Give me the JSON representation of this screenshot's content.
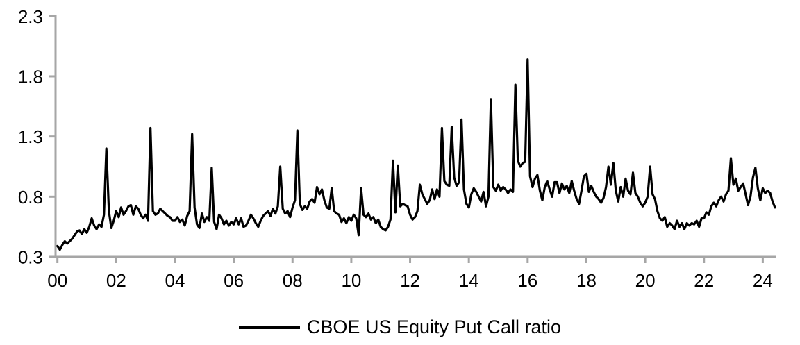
{
  "chart_data": {
    "type": "line",
    "title": "",
    "legend": {
      "label": "CBOE US Equity Put Call ratio",
      "position": "bottom-center"
    },
    "grid": false,
    "x_axis": {
      "tick_labels": [
        "00",
        "02",
        "04",
        "06",
        "08",
        "10",
        "12",
        "14",
        "16",
        "18",
        "20",
        "22",
        "24"
      ],
      "tick_years": [
        2000,
        2002,
        2004,
        2006,
        2008,
        2010,
        2012,
        2014,
        2016,
        2018,
        2020,
        2022,
        2024
      ],
      "range_years": [
        2000,
        2024.6
      ]
    },
    "y_axis": {
      "ticks": [
        0.3,
        0.8,
        1.3,
        1.8,
        2.3
      ],
      "range": [
        0.3,
        2.3
      ]
    },
    "series": [
      {
        "name": "CBOE US Equity Put Call ratio",
        "color": "#000000",
        "x_start_year": 2000,
        "x_step_months": 1,
        "values": [
          0.39,
          0.36,
          0.4,
          0.43,
          0.41,
          0.43,
          0.45,
          0.48,
          0.51,
          0.52,
          0.49,
          0.53,
          0.5,
          0.55,
          0.62,
          0.56,
          0.53,
          0.57,
          0.55,
          0.65,
          1.2,
          0.68,
          0.54,
          0.6,
          0.68,
          0.63,
          0.71,
          0.65,
          0.68,
          0.72,
          0.73,
          0.65,
          0.72,
          0.7,
          0.65,
          0.62,
          0.65,
          0.6,
          1.37,
          0.68,
          0.65,
          0.66,
          0.7,
          0.68,
          0.66,
          0.64,
          0.63,
          0.6,
          0.6,
          0.63,
          0.59,
          0.61,
          0.56,
          0.64,
          0.68,
          1.32,
          0.71,
          0.57,
          0.54,
          0.66,
          0.59,
          0.63,
          0.6,
          1.04,
          0.59,
          0.53,
          0.65,
          0.62,
          0.57,
          0.6,
          0.56,
          0.59,
          0.57,
          0.62,
          0.57,
          0.62,
          0.55,
          0.56,
          0.6,
          0.65,
          0.62,
          0.58,
          0.55,
          0.6,
          0.64,
          0.66,
          0.68,
          0.64,
          0.7,
          0.66,
          0.72,
          1.05,
          0.7,
          0.66,
          0.68,
          0.63,
          0.71,
          0.77,
          1.35,
          0.74,
          0.69,
          0.72,
          0.7,
          0.76,
          0.78,
          0.75,
          0.88,
          0.82,
          0.86,
          0.77,
          0.71,
          0.7,
          0.87,
          0.68,
          0.66,
          0.65,
          0.59,
          0.62,
          0.58,
          0.63,
          0.6,
          0.65,
          0.62,
          0.48,
          0.87,
          0.65,
          0.63,
          0.66,
          0.61,
          0.63,
          0.58,
          0.61,
          0.55,
          0.53,
          0.52,
          0.55,
          0.61,
          1.1,
          0.67,
          1.06,
          0.72,
          0.74,
          0.73,
          0.72,
          0.65,
          0.61,
          0.63,
          0.68,
          0.9,
          0.82,
          0.78,
          0.74,
          0.77,
          0.86,
          0.78,
          0.86,
          0.8,
          1.37,
          0.93,
          0.9,
          0.89,
          1.38,
          0.96,
          0.89,
          0.92,
          1.44,
          0.86,
          0.74,
          0.71,
          0.82,
          0.87,
          0.84,
          0.8,
          0.76,
          0.84,
          0.72,
          0.8,
          1.61,
          0.88,
          0.85,
          0.9,
          0.85,
          0.88,
          0.86,
          0.83,
          0.86,
          0.84,
          1.73,
          1.1,
          1.05,
          1.08,
          1.09,
          1.94,
          0.97,
          0.88,
          0.95,
          0.98,
          0.85,
          0.77,
          0.88,
          0.93,
          0.86,
          0.8,
          0.92,
          0.92,
          0.83,
          0.91,
          0.86,
          0.89,
          0.83,
          0.93,
          0.85,
          0.78,
          0.74,
          0.85,
          0.97,
          0.99,
          0.84,
          0.89,
          0.84,
          0.8,
          0.78,
          0.75,
          0.79,
          0.88,
          1.05,
          0.9,
          1.08,
          0.85,
          0.76,
          0.88,
          0.8,
          0.95,
          0.85,
          0.82,
          1.0,
          0.83,
          0.8,
          0.75,
          0.72,
          0.75,
          0.8,
          1.05,
          0.82,
          0.78,
          0.68,
          0.62,
          0.6,
          0.63,
          0.55,
          0.58,
          0.56,
          0.53,
          0.6,
          0.55,
          0.58,
          0.53,
          0.58,
          0.56,
          0.58,
          0.57,
          0.6,
          0.55,
          0.62,
          0.62,
          0.67,
          0.65,
          0.72,
          0.75,
          0.72,
          0.77,
          0.8,
          0.76,
          0.82,
          0.85,
          1.12,
          0.9,
          0.95,
          0.85,
          0.88,
          0.91,
          0.82,
          0.73,
          0.8,
          0.96,
          1.04,
          0.87,
          0.77,
          0.87,
          0.83,
          0.85,
          0.83,
          0.76,
          0.71
        ]
      }
    ]
  },
  "colors": {
    "background": "#FFFFFF",
    "axis": "#A6A6A6",
    "tick_text": "#000000",
    "series_line": "#000000"
  }
}
